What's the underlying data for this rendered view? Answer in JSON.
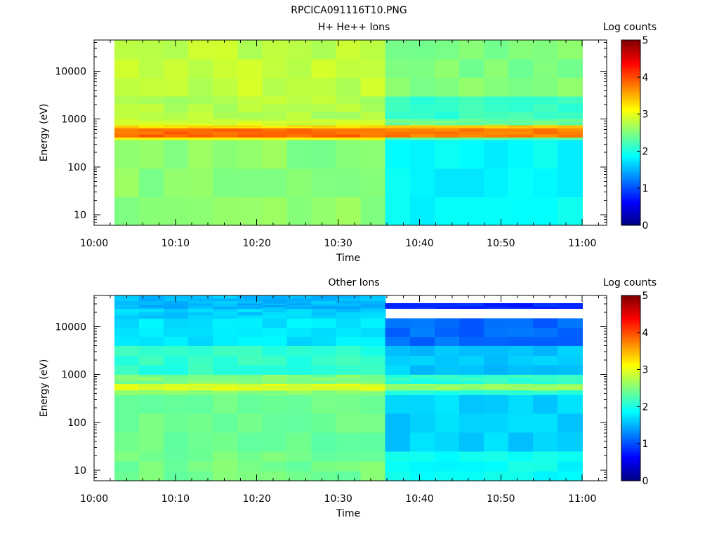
{
  "figure_title": "RPCICA091116T10.PNG",
  "chart_data": [
    {
      "type": "heatmap",
      "title": "H+ He++ Ions",
      "xlabel": "Time",
      "ylabel": "Energy (eV)",
      "x_ticks": [
        "10:00",
        "10:10",
        "10:20",
        "10:30",
        "10:40",
        "10:50",
        "11:00"
      ],
      "xlim": [
        "10:00",
        "11:03"
      ],
      "data_start": "10:02.5",
      "data_end": "11:00",
      "y_scale": "log",
      "ylim": [
        6,
        45000
      ],
      "y_ticks": [
        10,
        100,
        1000,
        10000
      ],
      "y_tick_labels": [
        "10",
        "100",
        "1000",
        "10000"
      ],
      "colorbar_label": "Log counts",
      "colorbar_ticks": [
        "0",
        "1",
        "2",
        "3",
        "4",
        "5"
      ],
      "colorbar_range": [
        0,
        5
      ],
      "colormap": "jet",
      "time_bins": 19,
      "change_time": "10:34.5",
      "energy_bands": [
        {
          "from": 6,
          "to": 370,
          "before": 2.55,
          "after": 1.85
        },
        {
          "from": 370,
          "to": 420,
          "before": 3.1,
          "after": 2.3
        },
        {
          "from": 420,
          "to": 650,
          "before": 3.85,
          "after": 3.75
        },
        {
          "from": 650,
          "to": 750,
          "before": 3.3,
          "after": 3.4
        },
        {
          "from": 750,
          "to": 1000,
          "before": 2.9,
          "after": 2.4
        },
        {
          "from": 1000,
          "to": 3000,
          "before": 2.75,
          "after": 2.15
        },
        {
          "from": 3000,
          "to": 45000,
          "before": 2.82,
          "after": 2.5
        }
      ]
    },
    {
      "type": "heatmap",
      "title": "Other Ions",
      "xlabel": "Time",
      "ylabel": "Energy (eV)",
      "x_ticks": [
        "10:00",
        "10:10",
        "10:20",
        "10:30",
        "10:40",
        "10:50",
        "11:00"
      ],
      "xlim": [
        "10:00",
        "11:03"
      ],
      "data_start": "10:02.5",
      "data_end": "11:00",
      "y_scale": "log",
      "ylim": [
        6,
        45000
      ],
      "y_ticks": [
        10,
        100,
        1000,
        10000
      ],
      "y_tick_labels": [
        "10",
        "100",
        "1000",
        "10000"
      ],
      "colorbar_label": "Log counts",
      "colorbar_ticks": [
        "0",
        "1",
        "2",
        "3",
        "4",
        "5"
      ],
      "colorbar_range": [
        0,
        5
      ],
      "colormap": "jet",
      "time_bins": 19,
      "change_time": "10:34.5",
      "energy_bands": [
        {
          "from": 6,
          "to": 25,
          "before": 2.45,
          "after": 1.9
        },
        {
          "from": 25,
          "to": 380,
          "before": 2.4,
          "after": 1.65
        },
        {
          "from": 380,
          "to": 470,
          "before": 2.55,
          "after": 2.05
        },
        {
          "from": 470,
          "to": 650,
          "before": 2.95,
          "after": 2.6
        },
        {
          "from": 650,
          "to": 1000,
          "before": 2.5,
          "after": 2.1
        },
        {
          "from": 1000,
          "to": 4000,
          "before": 2.1,
          "after": 1.6
        },
        {
          "from": 4000,
          "to": 15000,
          "before": 1.75,
          "after": 1.15
        },
        {
          "from": 15000,
          "to": 24000,
          "before": 1.65,
          "after": null
        },
        {
          "from": 24000,
          "to": 31000,
          "before": 1.5,
          "after": 0.8
        },
        {
          "from": 31000,
          "to": 45000,
          "before": 1.55,
          "after": null
        }
      ]
    }
  ]
}
